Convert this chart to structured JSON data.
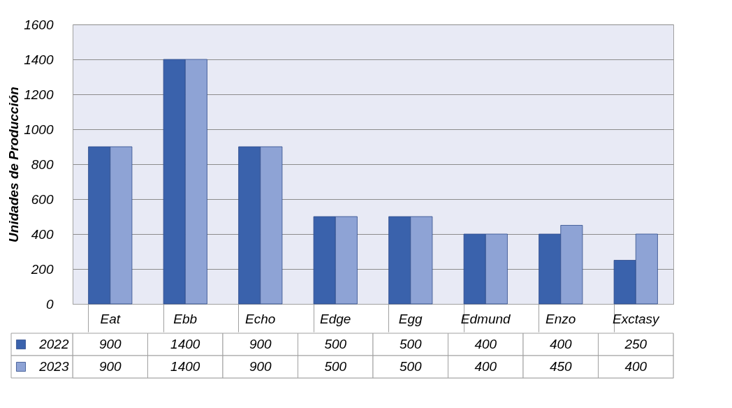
{
  "chart_data": {
    "type": "bar",
    "ylabel": "Unidades de Producción",
    "categories": [
      "Eat",
      "Ebb",
      "Echo",
      "Edge",
      "Egg",
      "Edmund",
      "Enzo",
      "Exctasy"
    ],
    "series": [
      {
        "name": "2022",
        "color": "#3a62ac",
        "values": [
          900,
          1400,
          900,
          500,
          500,
          400,
          400,
          250
        ]
      },
      {
        "name": "2023",
        "color": "#8ea3d5",
        "values": [
          900,
          1400,
          900,
          500,
          500,
          400,
          450,
          400
        ]
      }
    ],
    "ylim": [
      0,
      1600
    ],
    "yticks": [
      0,
      200,
      400,
      600,
      800,
      1000,
      1200,
      1400,
      1600
    ],
    "grid": "y",
    "data_labels": true,
    "legend": "bottom"
  }
}
